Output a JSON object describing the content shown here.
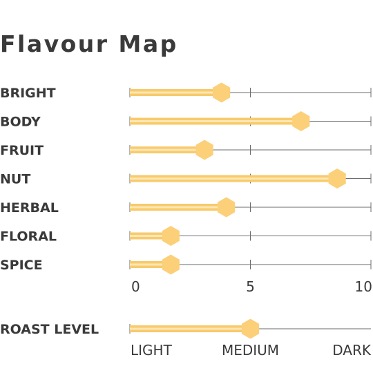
{
  "title": "Flavour Map",
  "colors": {
    "bar": "#f8ca6b",
    "bar_highlight": "#fde7b4",
    "marker": "#fccf79",
    "track": "#6b6b6b",
    "text": "#3a3a3a"
  },
  "chart_data": [
    {
      "type": "bar",
      "orientation": "horizontal",
      "categories": [
        "BRIGHT",
        "BODY",
        "FRUIT",
        "NUT",
        "HERBAL",
        "FLORAL",
        "SPICE"
      ],
      "values": [
        3.8,
        7.1,
        3.1,
        8.6,
        4.0,
        1.7,
        1.7
      ],
      "xlim": [
        0,
        10
      ],
      "xticks": [
        "0",
        "5",
        "10"
      ],
      "grid": true
    },
    {
      "type": "bar",
      "orientation": "horizontal",
      "categories": [
        "ROAST LEVEL"
      ],
      "values": [
        5
      ],
      "xlim": [
        0,
        10
      ],
      "xticks": [
        "LIGHT",
        "MEDIUM",
        "DARK"
      ]
    }
  ]
}
